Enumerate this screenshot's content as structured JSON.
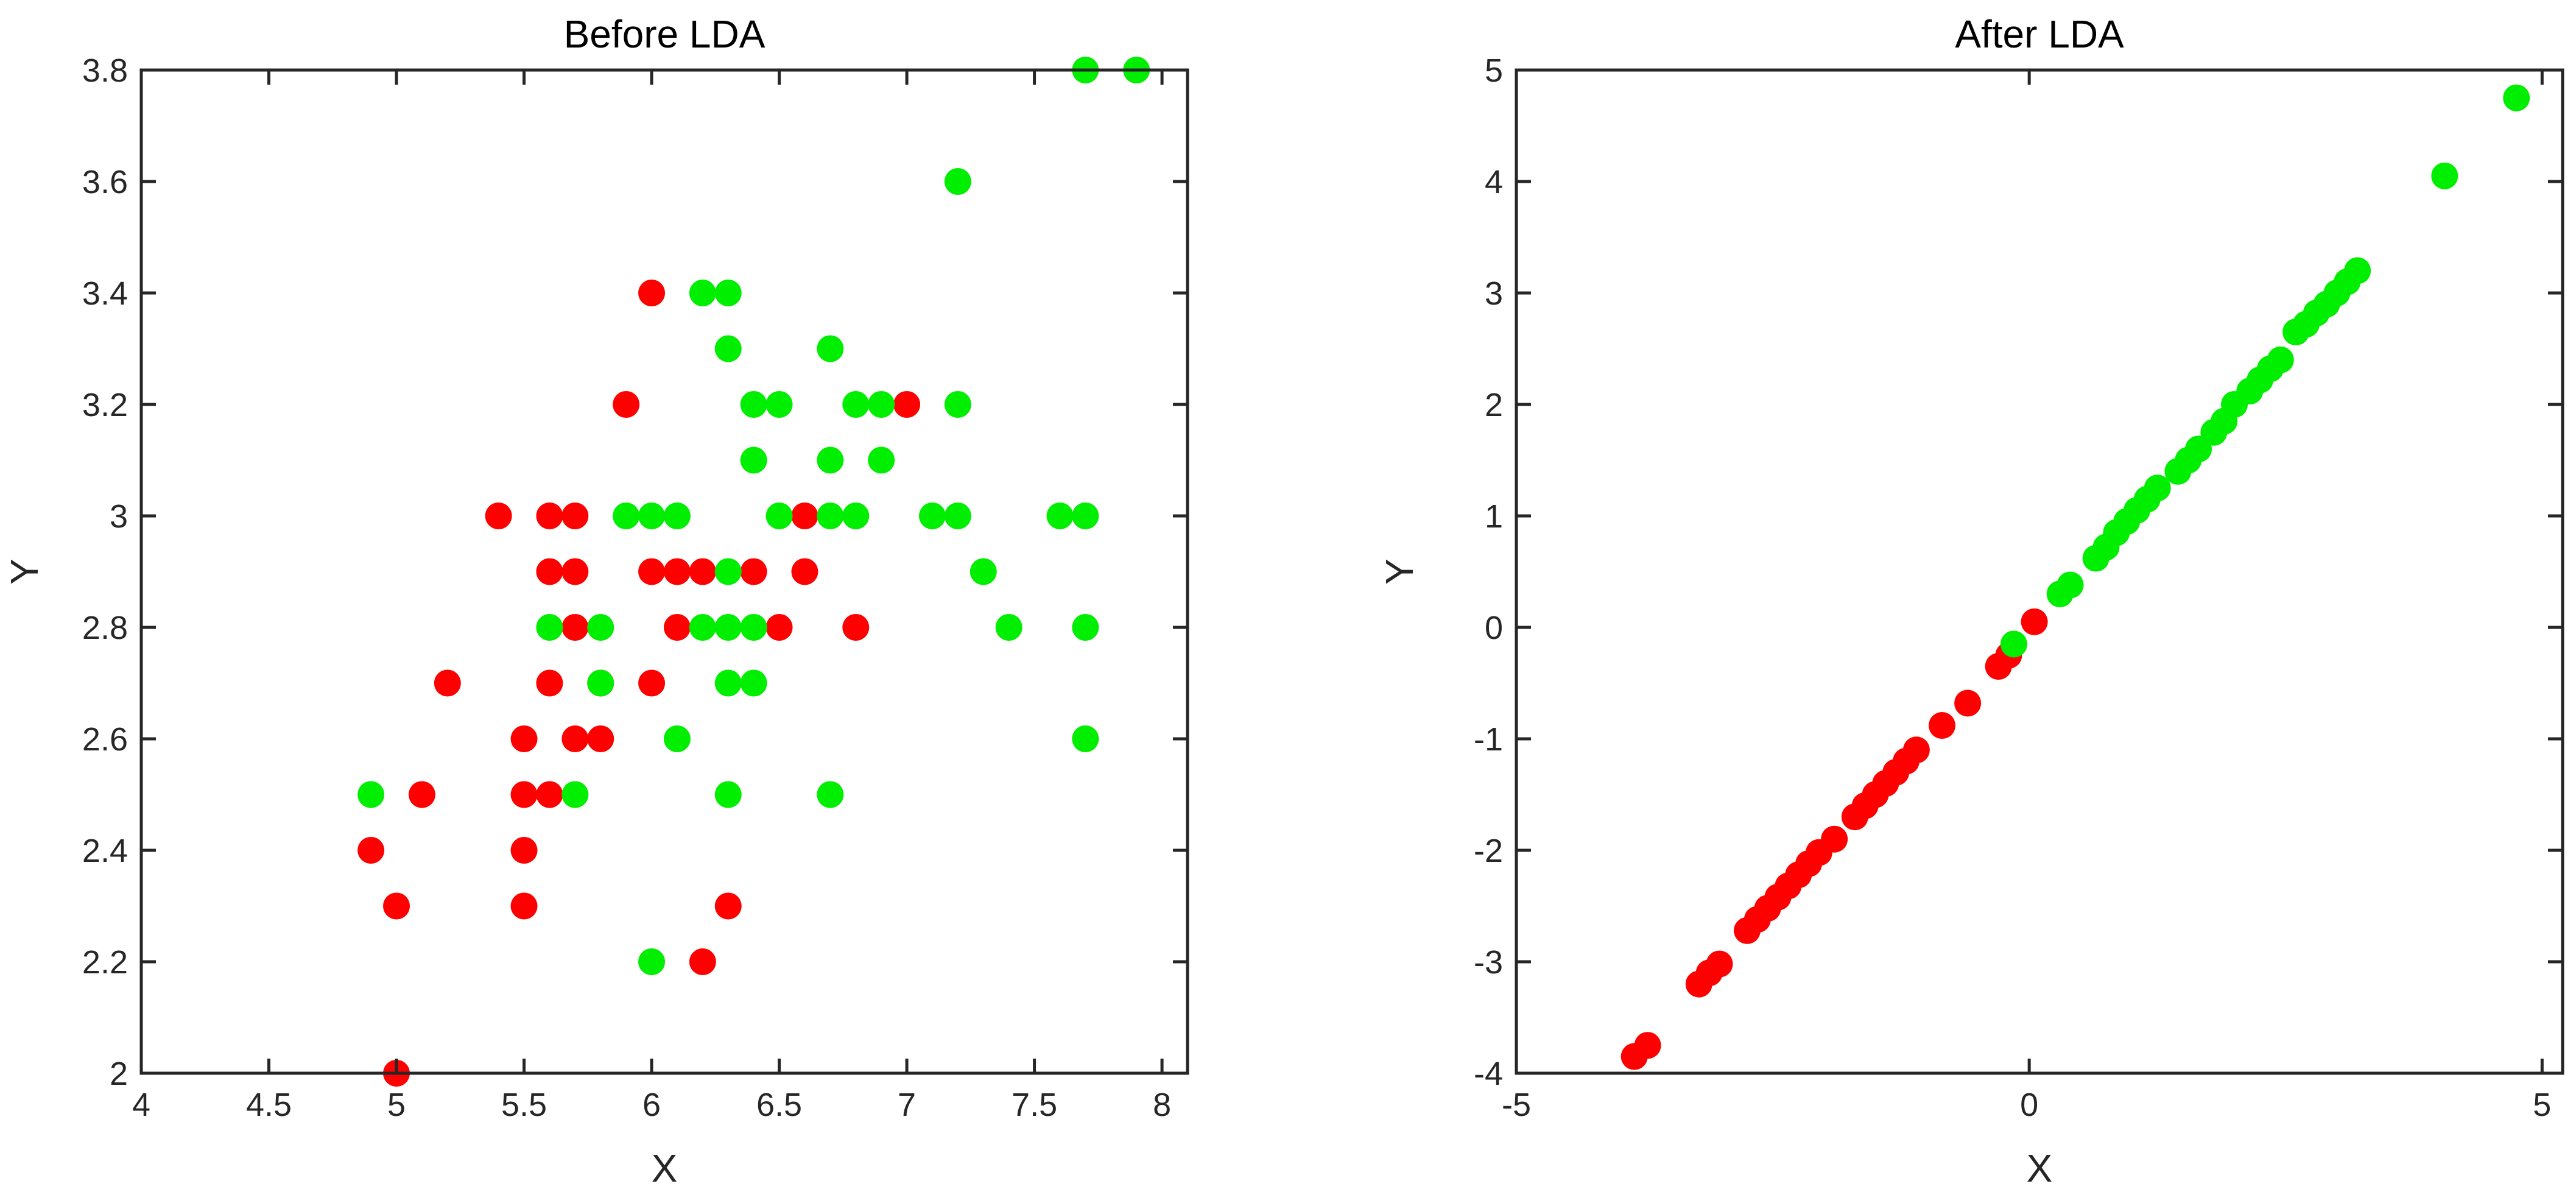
{
  "chart_data": [
    {
      "type": "scatter",
      "title": "Before LDA",
      "xlabel": "X",
      "ylabel": "Y",
      "xlim": [
        4,
        8.1
      ],
      "ylim": [
        2,
        3.8
      ],
      "xticks": [
        4,
        4.5,
        5,
        5.5,
        6,
        6.5,
        7,
        7.5,
        8
      ],
      "xtick_labels": [
        "4",
        "4.5",
        "5",
        "5.5",
        "6",
        "6.5",
        "7",
        "7.5",
        "8"
      ],
      "yticks": [
        2,
        2.2,
        2.4,
        2.6,
        2.8,
        3,
        3.2,
        3.4,
        3.6,
        3.8
      ],
      "ytick_labels": [
        "2",
        "2.2",
        "2.4",
        "2.6",
        "2.8",
        "3",
        "3.2",
        "3.4",
        "3.6",
        "3.8"
      ],
      "grid": false,
      "series": [
        {
          "color": "#ff0000",
          "points": [
            [
              4.9,
              2.4
            ],
            [
              5.0,
              2.3
            ],
            [
              5.0,
              2.0
            ],
            [
              5.1,
              2.5
            ],
            [
              5.2,
              2.7
            ],
            [
              5.4,
              3.0
            ],
            [
              5.5,
              2.3
            ],
            [
              5.5,
              2.4
            ],
            [
              5.5,
              2.5
            ],
            [
              5.5,
              2.6
            ],
            [
              5.6,
              2.5
            ],
            [
              5.6,
              2.7
            ],
            [
              5.6,
              2.9
            ],
            [
              5.6,
              3.0
            ],
            [
              5.7,
              2.6
            ],
            [
              5.7,
              2.8
            ],
            [
              5.7,
              2.9
            ],
            [
              5.7,
              3.0
            ],
            [
              5.8,
              2.6
            ],
            [
              5.8,
              2.7
            ],
            [
              5.9,
              3.2
            ],
            [
              6.0,
              2.7
            ],
            [
              6.0,
              2.9
            ],
            [
              6.0,
              3.4
            ],
            [
              6.1,
              2.8
            ],
            [
              6.1,
              2.9
            ],
            [
              6.2,
              2.2
            ],
            [
              6.2,
              2.9
            ],
            [
              6.3,
              2.3
            ],
            [
              6.4,
              2.9
            ],
            [
              6.5,
              2.8
            ],
            [
              6.6,
              2.9
            ],
            [
              6.6,
              3.0
            ],
            [
              6.8,
              2.8
            ],
            [
              7.0,
              3.2
            ]
          ]
        },
        {
          "color": "#00ee00",
          "points": [
            [
              4.9,
              2.5
            ],
            [
              5.6,
              2.8
            ],
            [
              5.7,
              2.5
            ],
            [
              5.8,
              2.7
            ],
            [
              5.8,
              2.8
            ],
            [
              5.9,
              3.0
            ],
            [
              6.0,
              2.2
            ],
            [
              6.0,
              3.0
            ],
            [
              6.1,
              2.6
            ],
            [
              6.1,
              3.0
            ],
            [
              6.2,
              2.8
            ],
            [
              6.2,
              3.4
            ],
            [
              6.3,
              2.5
            ],
            [
              6.3,
              2.7
            ],
            [
              6.3,
              2.8
            ],
            [
              6.3,
              2.9
            ],
            [
              6.3,
              3.3
            ],
            [
              6.3,
              3.4
            ],
            [
              6.4,
              2.7
            ],
            [
              6.4,
              2.8
            ],
            [
              6.4,
              3.1
            ],
            [
              6.4,
              3.2
            ],
            [
              6.5,
              3.0
            ],
            [
              6.5,
              3.2
            ],
            [
              6.7,
              2.5
            ],
            [
              6.7,
              3.0
            ],
            [
              6.7,
              3.1
            ],
            [
              6.7,
              3.3
            ],
            [
              6.8,
              3.0
            ],
            [
              6.8,
              3.2
            ],
            [
              6.9,
              3.1
            ],
            [
              6.9,
              3.2
            ],
            [
              7.1,
              3.0
            ],
            [
              7.2,
              3.0
            ],
            [
              7.2,
              3.2
            ],
            [
              7.2,
              3.6
            ],
            [
              7.3,
              2.9
            ],
            [
              7.4,
              2.8
            ],
            [
              7.6,
              3.0
            ],
            [
              7.7,
              2.6
            ],
            [
              7.7,
              2.8
            ],
            [
              7.7,
              3.0
            ],
            [
              7.7,
              3.8
            ],
            [
              7.9,
              3.8
            ]
          ]
        }
      ]
    },
    {
      "type": "scatter",
      "title": "After LDA",
      "xlabel": "X",
      "ylabel": "Y",
      "xlim": [
        -5,
        5.2
      ],
      "ylim": [
        -4,
        5
      ],
      "xticks": [
        -5,
        0,
        5
      ],
      "xtick_labels": [
        "-5",
        "0",
        "5"
      ],
      "yticks": [
        -4,
        -3,
        -2,
        -1,
        0,
        1,
        2,
        3,
        4,
        5
      ],
      "ytick_labels": [
        "-4",
        "-3",
        "-2",
        "-1",
        "0",
        "1",
        "2",
        "3",
        "4",
        "5"
      ],
      "grid": false,
      "series": [
        {
          "color": "#ff0000",
          "points": [
            [
              -3.85,
              -3.85
            ],
            [
              -3.72,
              -3.75
            ],
            [
              -3.22,
              -3.2
            ],
            [
              -3.12,
              -3.1
            ],
            [
              -3.02,
              -3.02
            ],
            [
              -2.75,
              -2.72
            ],
            [
              -2.65,
              -2.62
            ],
            [
              -2.55,
              -2.52
            ],
            [
              -2.45,
              -2.42
            ],
            [
              -2.35,
              -2.32
            ],
            [
              -2.25,
              -2.22
            ],
            [
              -2.15,
              -2.12
            ],
            [
              -2.05,
              -2.02
            ],
            [
              -1.9,
              -1.9
            ],
            [
              -1.7,
              -1.7
            ],
            [
              -1.6,
              -1.6
            ],
            [
              -1.5,
              -1.5
            ],
            [
              -1.4,
              -1.4
            ],
            [
              -1.3,
              -1.3
            ],
            [
              -1.2,
              -1.2
            ],
            [
              -1.1,
              -1.1
            ],
            [
              -0.85,
              -0.88
            ],
            [
              -0.6,
              -0.68
            ],
            [
              -0.3,
              -0.35
            ],
            [
              -0.2,
              -0.25
            ],
            [
              0.05,
              0.05
            ]
          ]
        },
        {
          "color": "#00ee00",
          "points": [
            [
              -0.15,
              -0.15
            ],
            [
              0.3,
              0.3
            ],
            [
              0.4,
              0.38
            ],
            [
              0.65,
              0.62
            ],
            [
              0.75,
              0.72
            ],
            [
              0.85,
              0.85
            ],
            [
              0.95,
              0.95
            ],
            [
              1.05,
              1.05
            ],
            [
              1.15,
              1.15
            ],
            [
              1.25,
              1.25
            ],
            [
              1.45,
              1.4
            ],
            [
              1.55,
              1.5
            ],
            [
              1.65,
              1.6
            ],
            [
              1.8,
              1.75
            ],
            [
              1.9,
              1.85
            ],
            [
              2.0,
              2.0
            ],
            [
              2.15,
              2.12
            ],
            [
              2.25,
              2.22
            ],
            [
              2.35,
              2.32
            ],
            [
              2.45,
              2.4
            ],
            [
              2.6,
              2.65
            ],
            [
              2.7,
              2.72
            ],
            [
              2.8,
              2.82
            ],
            [
              2.9,
              2.9
            ],
            [
              3.0,
              3.0
            ],
            [
              3.1,
              3.1
            ],
            [
              3.2,
              3.2
            ],
            [
              4.05,
              4.05
            ],
            [
              4.75,
              4.75
            ]
          ]
        }
      ]
    }
  ]
}
